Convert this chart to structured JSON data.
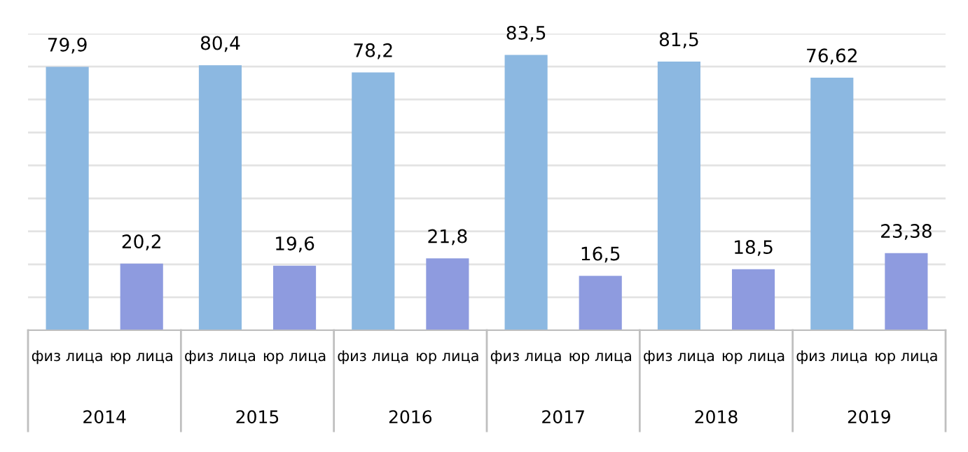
{
  "chart_data": {
    "type": "bar",
    "categories": [
      "2014",
      "2015",
      "2016",
      "2017",
      "2018",
      "2019"
    ],
    "series": [
      {
        "name": "физ лица",
        "color": "#8cb8e1",
        "values": [
          79.9,
          80.4,
          78.2,
          83.5,
          81.5,
          76.62
        ],
        "value_labels": [
          "79,9",
          "80,4",
          "78,2",
          "83,5",
          "81,5",
          "76,62"
        ]
      },
      {
        "name": "юр лица",
        "color": "#8e9bdf",
        "values": [
          20.2,
          19.6,
          21.8,
          16.5,
          18.5,
          23.38
        ],
        "value_labels": [
          "20,2",
          "19,6",
          "21,8",
          "16,5",
          "18,5",
          "23,38"
        ]
      }
    ],
    "ylim": [
      0,
      90
    ],
    "yticks": [
      {
        "value": 0,
        "label": null
      },
      {
        "value": 10,
        "label": null
      },
      {
        "value": 20,
        "label": null
      },
      {
        "value": 30,
        "label": null
      },
      {
        "value": 40,
        "label": null
      },
      {
        "value": 50,
        "label": null
      },
      {
        "value": 60,
        "label": null
      },
      {
        "value": 70,
        "label": null
      },
      {
        "value": 80,
        "label": null
      },
      {
        "value": 90,
        "label": null
      }
    ],
    "grid": "y",
    "tick_labels": "x",
    "legend": false
  }
}
